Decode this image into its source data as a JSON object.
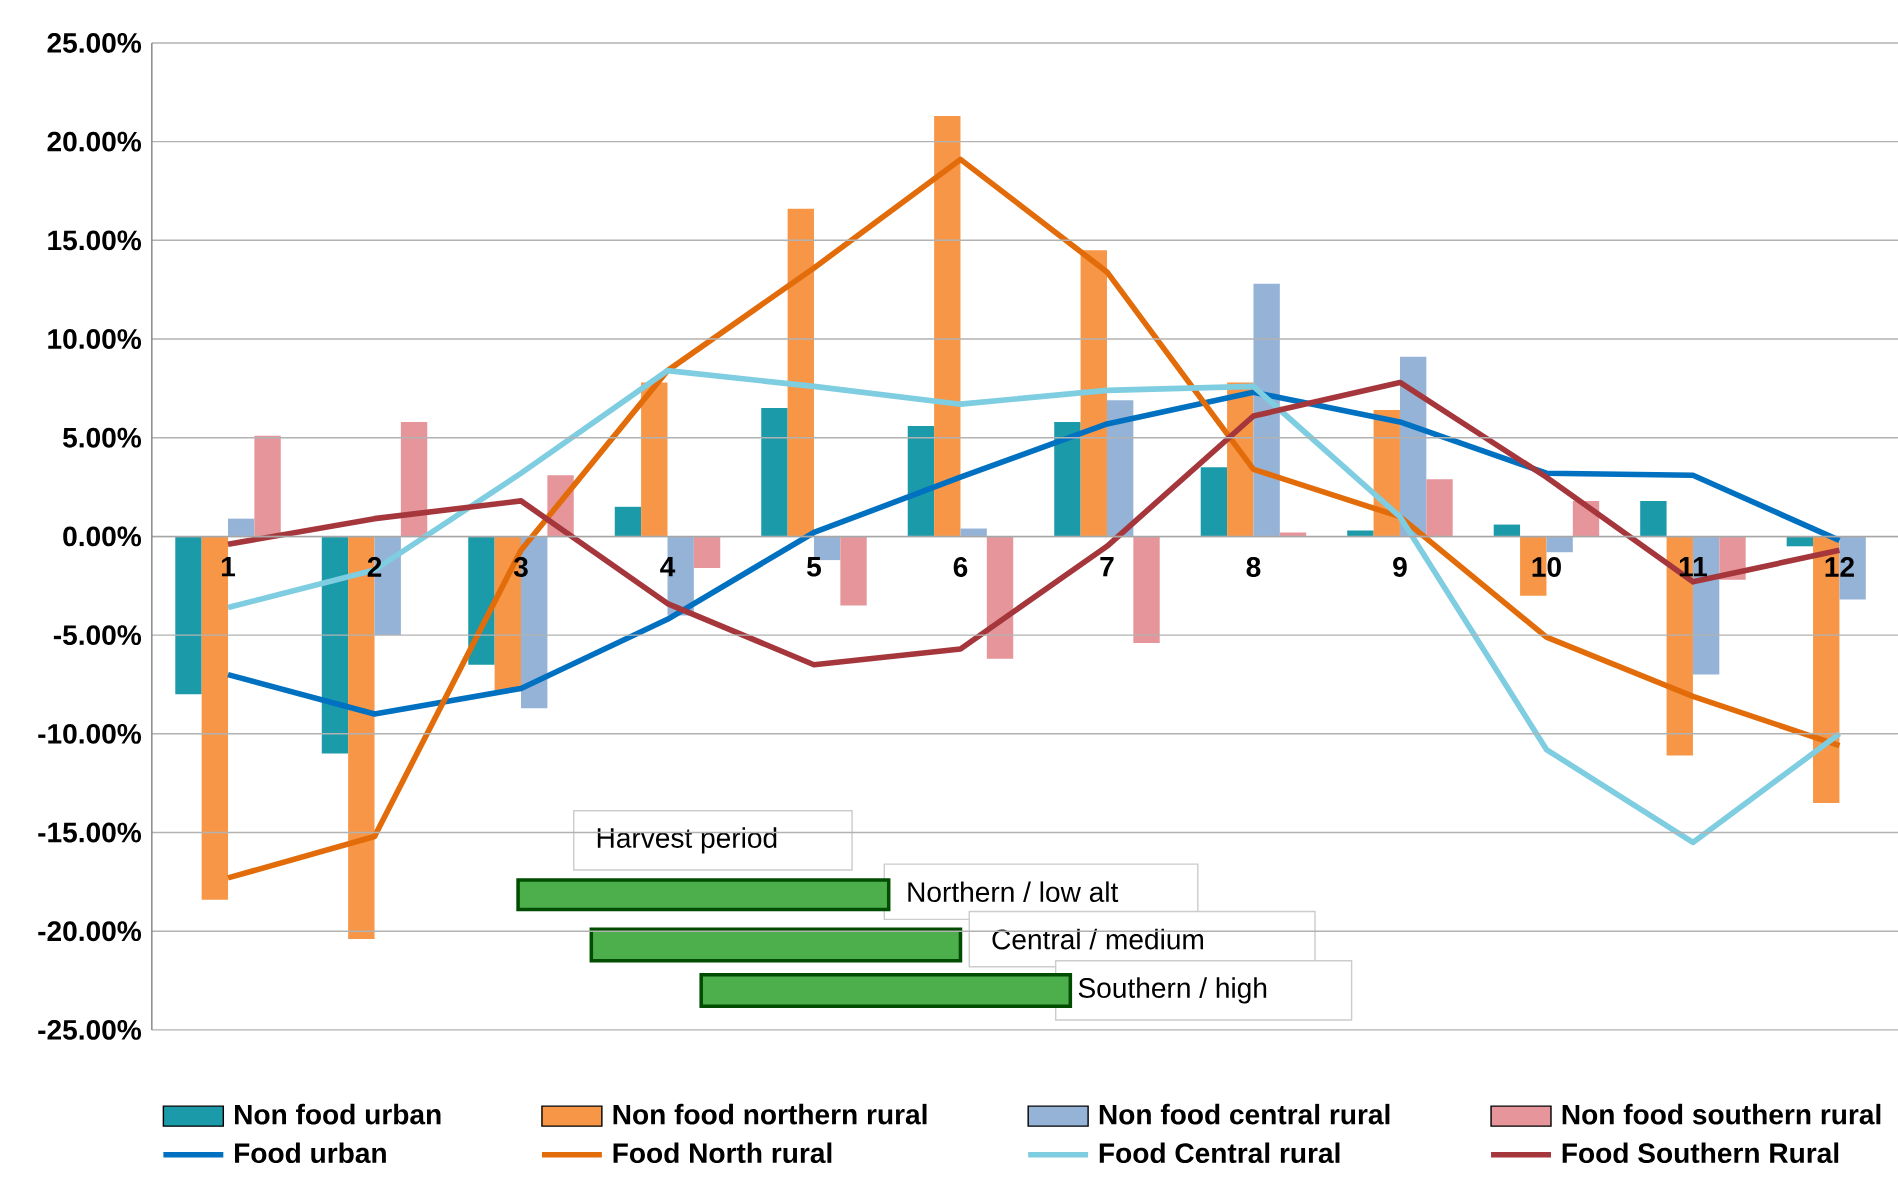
{
  "chart_data": {
    "type": "bar",
    "categories": [
      "1",
      "2",
      "3",
      "4",
      "5",
      "6",
      "7",
      "8",
      "9",
      "10",
      "11",
      "12"
    ],
    "ylim": [
      -25,
      25
    ],
    "yticks": [
      {
        "value": -25,
        "label": "-25.00%"
      },
      {
        "value": -20,
        "label": "-20.00%"
      },
      {
        "value": -15,
        "label": "-15.00%"
      },
      {
        "value": -10,
        "label": "-10.00%"
      },
      {
        "value": -5,
        "label": "-5.00%"
      },
      {
        "value": 0,
        "label": "0.00%"
      },
      {
        "value": 5,
        "label": "5.00%"
      },
      {
        "value": 10,
        "label": "10.00%"
      },
      {
        "value": 15,
        "label": "15.00%"
      },
      {
        "value": 20,
        "label": "20.00%"
      },
      {
        "value": 25,
        "label": "25.00%"
      }
    ],
    "grid": "y",
    "legend": "bottom",
    "marker": "none",
    "line_style": "solid",
    "annotations": [
      "Harvest period",
      "Northern / low alt",
      "Central / medium",
      "Southern  / high"
    ],
    "series": [
      {
        "name": "Non food urban",
        "color": "#1b9aaa",
        "values": [
          -8.0,
          -11.0,
          -6.5,
          1.5,
          6.5,
          5.6,
          5.8,
          3.5,
          0.3,
          0.6,
          1.8,
          -0.5
        ]
      },
      {
        "name": "Non food northern rural",
        "color": "#f79646",
        "values": [
          -18.4,
          -20.4,
          -7.8,
          7.8,
          16.6,
          21.3,
          14.5,
          7.8,
          6.4,
          -3.0,
          -11.1,
          -13.5
        ]
      },
      {
        "name": "Non food central rural",
        "color": "#95b3d7",
        "values": [
          0.9,
          -5.0,
          -8.7,
          -4.0,
          -1.2,
          0.4,
          6.9,
          12.8,
          9.1,
          -0.8,
          -7.0,
          -3.2
        ]
      },
      {
        "name": "Non food southern rural",
        "color": "#e6959a",
        "values": [
          5.1,
          5.8,
          3.1,
          -1.6,
          -3.5,
          -6.2,
          -5.4,
          0.2,
          2.9,
          1.8,
          -2.2,
          null
        ]
      },
      {
        "name": "Food urban",
        "type": "line",
        "color": "#0070c0",
        "values": [
          -7.0,
          -9.0,
          -7.7,
          -4.2,
          0.2,
          3.0,
          5.7,
          7.3,
          5.8,
          3.2,
          3.1,
          -0.2
        ]
      },
      {
        "name": "Food North rural",
        "type": "line",
        "color": "#e36c0a",
        "values": [
          -17.3,
          -15.2,
          -0.7,
          8.4,
          13.6,
          19.1,
          13.4,
          3.4,
          1.0,
          -5.1,
          -8.1,
          -10.6
        ]
      },
      {
        "name": "Food Central rural",
        "type": "line",
        "color": "#7fcde0",
        "values": [
          -3.6,
          -1.7,
          3.2,
          8.4,
          7.6,
          6.7,
          7.4,
          7.6,
          1.0,
          -10.8,
          -15.5,
          -10.0
        ]
      },
      {
        "name": "Food Southern Rural",
        "type": "line",
        "color": "#a5373c",
        "values": [
          -0.4,
          0.9,
          1.8,
          -3.4,
          -6.5,
          -5.7,
          -0.5,
          6.1,
          7.8,
          3.0,
          -2.3,
          -0.7
        ]
      }
    ]
  }
}
